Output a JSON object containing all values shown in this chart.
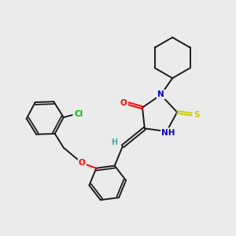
{
  "bg_color": "#ebebeb",
  "bond_color": "#1a1a1a",
  "bond_width": 1.4,
  "atom_colors": {
    "O": "#ff0000",
    "N": "#0000cc",
    "S": "#cccc00",
    "Cl": "#00bb00",
    "H": "#44aaaa",
    "C": "#1a1a1a"
  },
  "figsize": [
    3.0,
    3.0
  ],
  "dpi": 100,
  "xlim": [
    0,
    10
  ],
  "ylim": [
    0,
    10
  ]
}
